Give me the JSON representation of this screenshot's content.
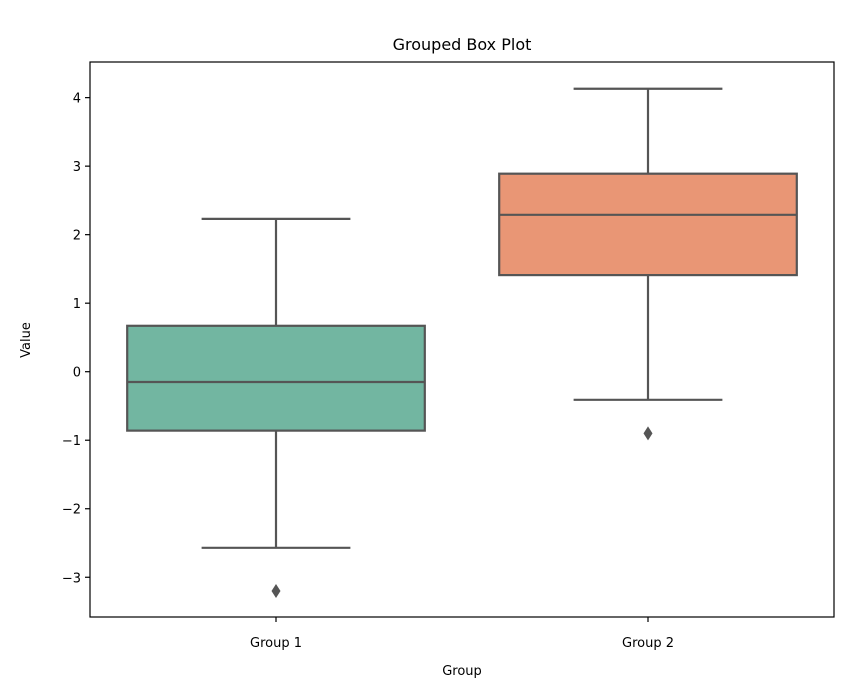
{
  "chart_data": {
    "type": "box",
    "title": "Grouped Box Plot",
    "xlabel": "Group",
    "ylabel": "Value",
    "ylim": [
      -3.58,
      4.52
    ],
    "yticks": [
      {
        "value": 4,
        "label": "4"
      },
      {
        "value": 3,
        "label": "3"
      },
      {
        "value": 2,
        "label": "2"
      },
      {
        "value": 1,
        "label": "1"
      },
      {
        "value": 0,
        "label": "0"
      },
      {
        "value": -1,
        "label": "−1"
      },
      {
        "value": -2,
        "label": "−2"
      },
      {
        "value": -3,
        "label": "−3"
      }
    ],
    "grid": false,
    "categories": [
      "Group 1",
      "Group 2"
    ],
    "boxes": [
      {
        "category": "Group 1",
        "whisker_low": -2.57,
        "q1": -0.86,
        "median": -0.15,
        "q3": 0.67,
        "whisker_high": 2.23,
        "outliers": [
          -3.2
        ],
        "color": "#72b6a1"
      },
      {
        "category": "Group 2",
        "whisker_low": -0.41,
        "q1": 1.41,
        "median": 2.29,
        "q3": 2.89,
        "whisker_high": 4.13,
        "outliers": [
          -0.9
        ],
        "color": "#e99675"
      }
    ],
    "line_color": "#555555"
  }
}
